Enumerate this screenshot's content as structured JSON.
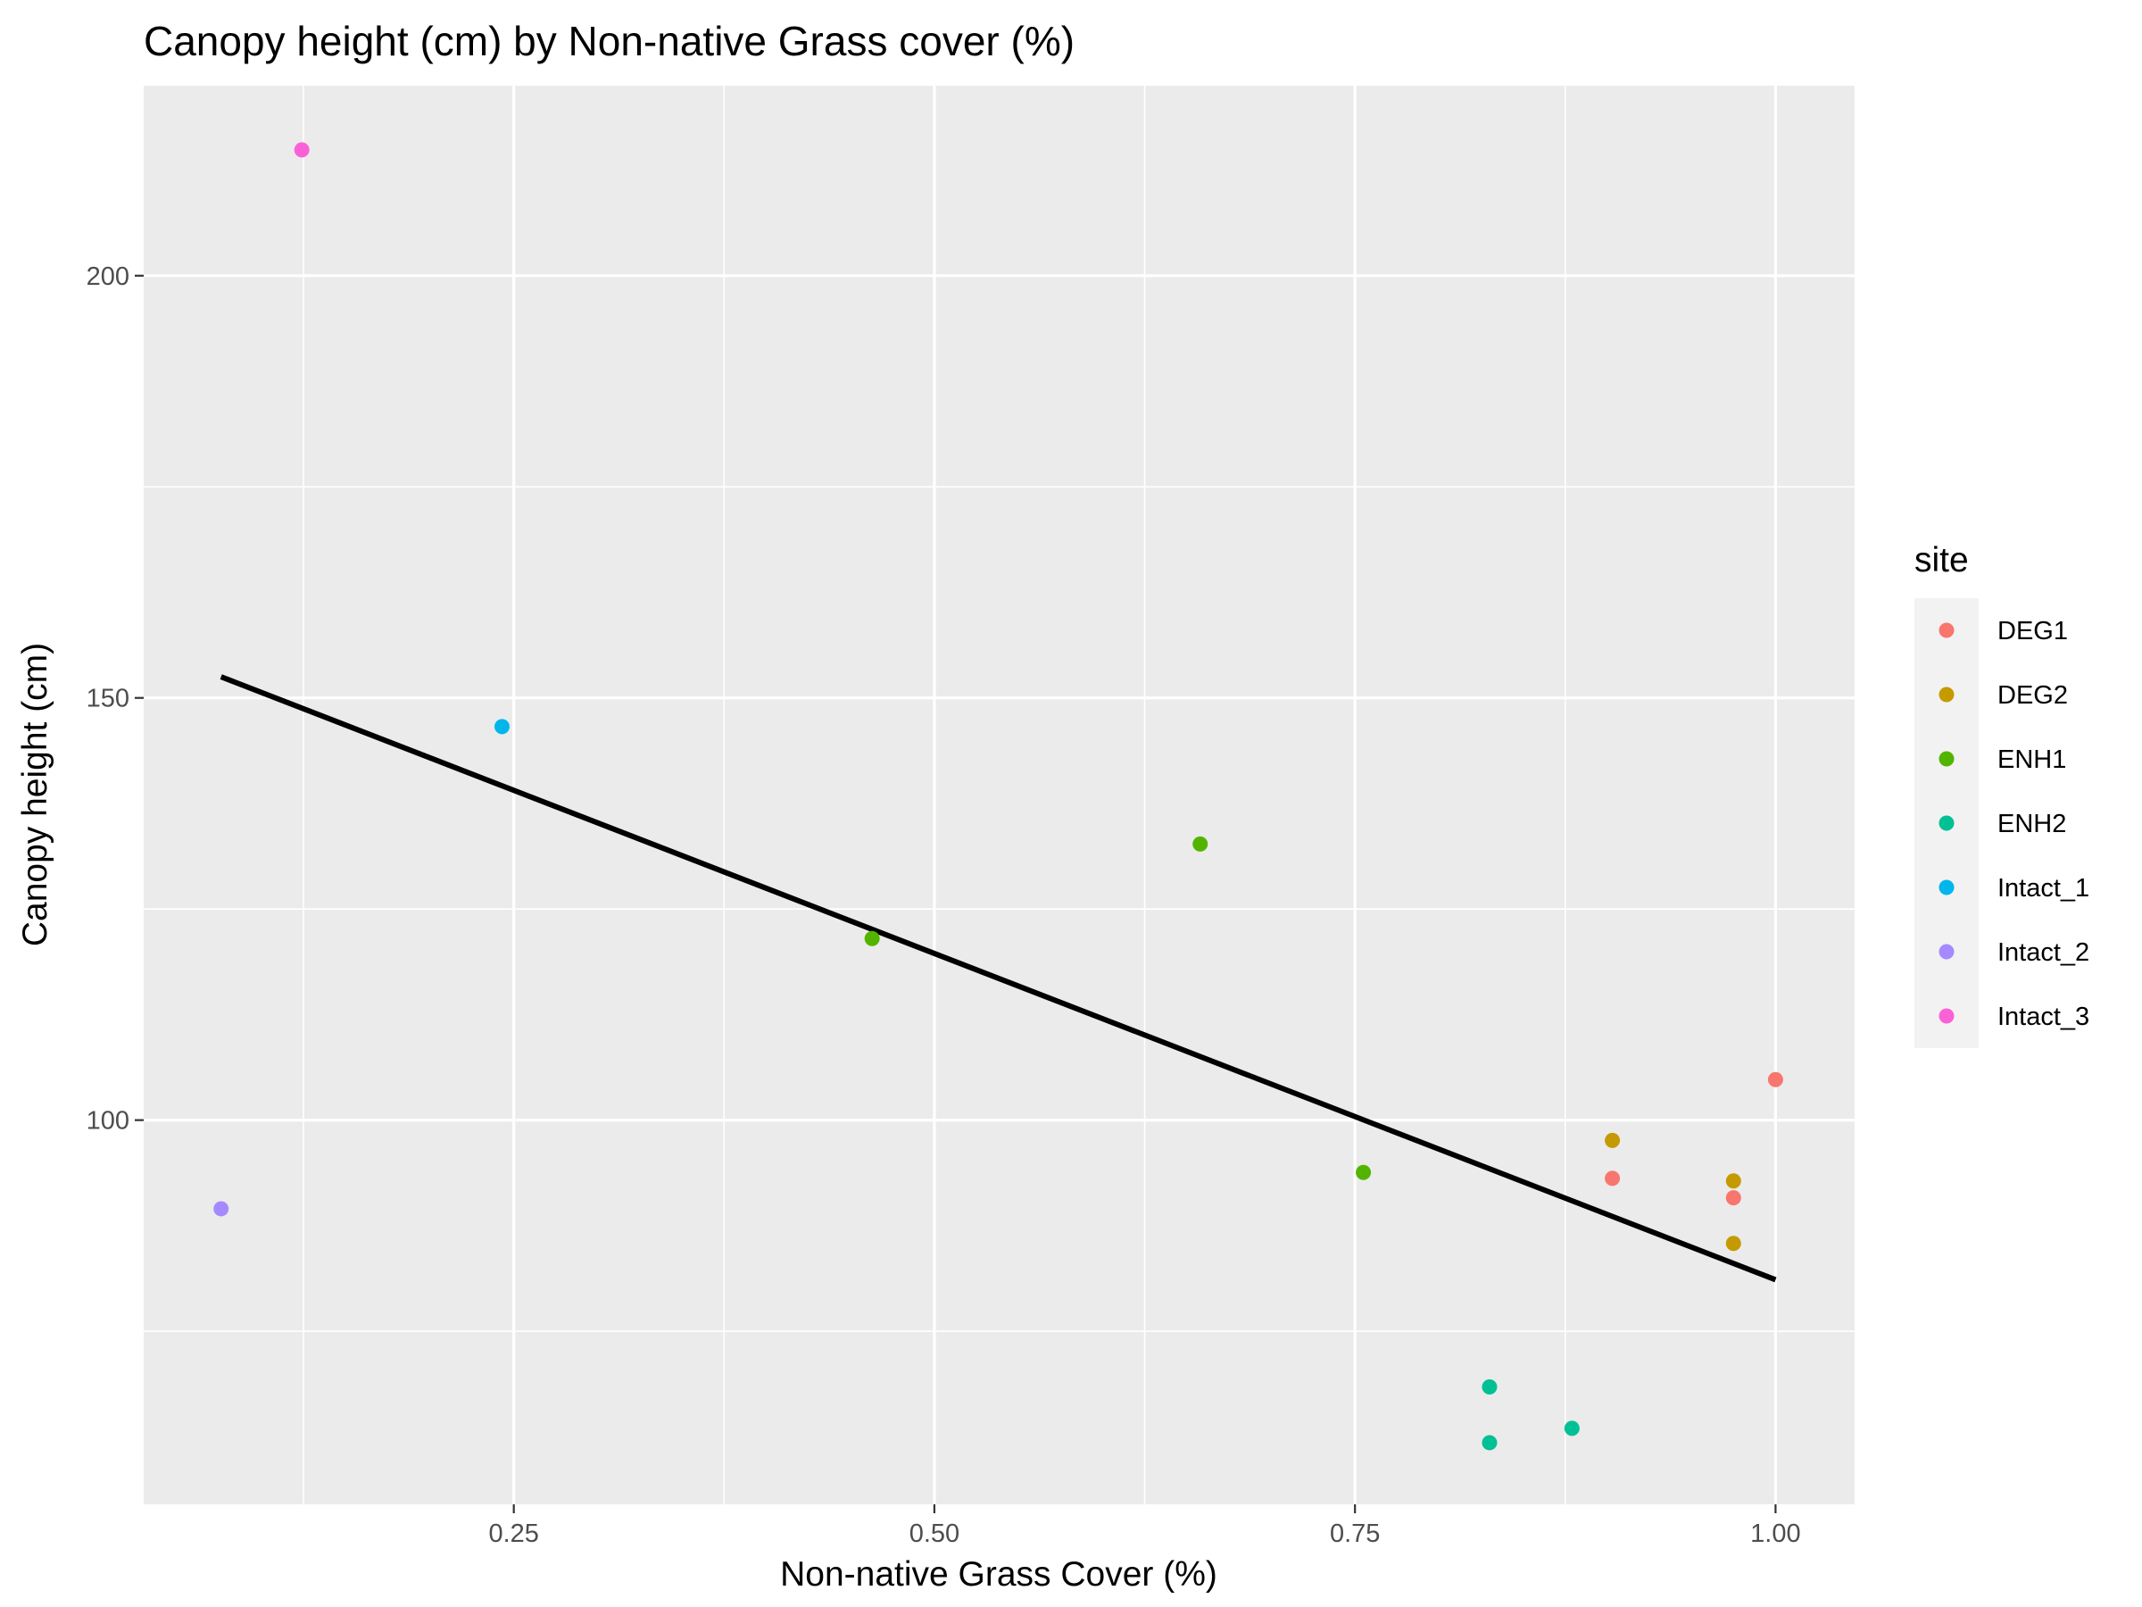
{
  "chart_data": {
    "type": "scatter",
    "title": "Canopy height (cm) by Non-native Grass cover (%)",
    "xlabel": "Non-native Grass Cover (%)",
    "ylabel": "Canopy height (cm)",
    "xlim": [
      0.03,
      1.047
    ],
    "ylim": [
      54.5,
      222.5
    ],
    "x_ticks": [
      0.25,
      0.5,
      0.75,
      1.0
    ],
    "x_tick_labels": [
      "0.25",
      "0.50",
      "0.75",
      "1.00"
    ],
    "x_minor_ticks": [
      0.125,
      0.375,
      0.625,
      0.875
    ],
    "y_ticks": [
      100,
      150,
      200
    ],
    "y_tick_labels": [
      "100",
      "150",
      "200"
    ],
    "y_minor_ticks": [
      75,
      125,
      175
    ],
    "grid": true,
    "legend": {
      "title": "site",
      "position": "right"
    },
    "series": [
      {
        "name": "DEG1",
        "color": "#F8766D",
        "points": [
          [
            1.0,
            104.8
          ],
          [
            0.903,
            93.1
          ],
          [
            0.975,
            90.8
          ]
        ]
      },
      {
        "name": "DEG2",
        "color": "#C49A00",
        "points": [
          [
            0.903,
            97.6
          ],
          [
            0.975,
            92.8
          ],
          [
            0.975,
            85.4
          ]
        ]
      },
      {
        "name": "ENH1",
        "color": "#53B400",
        "points": [
          [
            0.658,
            132.7
          ],
          [
            0.463,
            121.5
          ],
          [
            0.755,
            93.8
          ]
        ]
      },
      {
        "name": "ENH2",
        "color": "#00C094",
        "points": [
          [
            0.83,
            68.4
          ],
          [
            0.879,
            63.5
          ],
          [
            0.83,
            61.8
          ]
        ]
      },
      {
        "name": "Intact_1",
        "color": "#00B6EB",
        "points": [
          [
            0.243,
            146.6
          ]
        ]
      },
      {
        "name": "Intact_2",
        "color": "#A58AFF",
        "points": [
          [
            0.076,
            89.5
          ]
        ]
      },
      {
        "name": "Intact_3",
        "color": "#FB61D7",
        "points": [
          [
            0.124,
            214.9
          ]
        ]
      }
    ],
    "trend_line": {
      "color": "#000000",
      "x": [
        0.076,
        1.0
      ],
      "y": [
        152.5,
        81.1
      ]
    }
  }
}
